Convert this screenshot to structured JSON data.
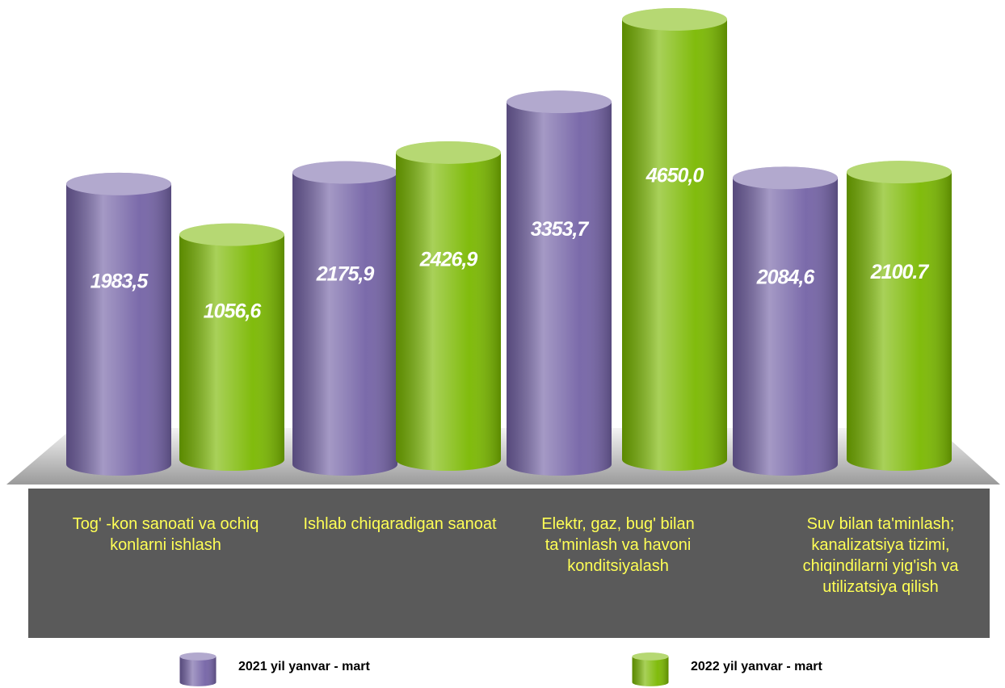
{
  "chart_data": {
    "type": "cylinder",
    "categories": [
      "Tog' -kon sanoati va ochiq konlarni ishlash",
      "Ishlab chiqaradigan sanoat",
      "Elektr, gaz, bug' bilan ta'minlash va havoni konditsiyalash",
      "Suv bilan ta'minlash; kanalizatsiya tizimi, chiqindilarni yig'ish va utilizatsiya qilish"
    ],
    "series": [
      {
        "name": "2021 yil  yanvar - mart",
        "color": "#7463a6",
        "values": [
          1983.5,
          2175.9,
          3353.7,
          2084.6
        ],
        "value_labels": [
          "1983,5",
          "2175,9",
          "3353,7",
          "2084,6"
        ]
      },
      {
        "name": "2022 yil  yanvar - mart",
        "color": "#7ab800",
        "values": [
          1056.6,
          2426.9,
          4650.0,
          2100.7
        ],
        "value_labels": [
          "1056,6",
          "2426,9",
          "4650,0",
          "2100.7"
        ]
      }
    ]
  }
}
